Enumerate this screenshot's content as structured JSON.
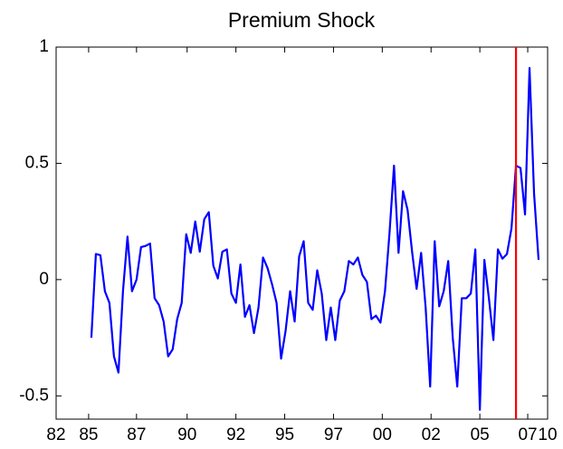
{
  "chart_data": {
    "type": "line",
    "title": "Premium Shock",
    "x": [
      1985,
      1985.25,
      1985.5,
      1985.75,
      1986,
      1986.25,
      1986.5,
      1986.75,
      1987,
      1987.25,
      1987.5,
      1987.75,
      1988,
      1988.25,
      1988.5,
      1988.75,
      1989,
      1989.25,
      1989.5,
      1989.75,
      1990,
      1990.25,
      1990.5,
      1990.75,
      1991,
      1991.25,
      1991.5,
      1991.75,
      1992,
      1992.25,
      1992.5,
      1992.75,
      1993,
      1993.25,
      1993.5,
      1993.75,
      1994,
      1994.25,
      1994.5,
      1994.75,
      1995,
      1995.25,
      1995.5,
      1995.75,
      1996,
      1996.25,
      1996.5,
      1996.75,
      1997,
      1997.25,
      1997.5,
      1997.75,
      1998,
      1998.25,
      1998.5,
      1998.75,
      1999,
      1999.25,
      1999.5,
      1999.75,
      2000,
      2000.25,
      2000.5,
      2000.75,
      2001,
      2001.25,
      2001.5,
      2001.75,
      2002,
      2002.25,
      2002.5,
      2002.75,
      2003,
      2003.25,
      2003.5,
      2003.75,
      2004,
      2004.25,
      2004.5,
      2004.75,
      2005,
      2005.25,
      2005.5,
      2005.75,
      2006,
      2006.25,
      2006.5,
      2006.75,
      2007,
      2007.25,
      2007.5,
      2007.75,
      2008,
      2008.25,
      2008.5,
      2008.75,
      2009,
      2009.25,
      2009.5,
      2009.75
    ],
    "series": [
      {
        "color": "#0000ff",
        "values": [
          -0.25,
          0.11,
          0.105,
          -0.05,
          -0.1,
          -0.33,
          -0.4,
          -0.05,
          0.185,
          -0.05,
          0.0,
          0.14,
          0.145,
          0.155,
          -0.08,
          -0.11,
          -0.18,
          -0.33,
          -0.3,
          -0.17,
          -0.1,
          0.195,
          0.115,
          0.25,
          0.12,
          0.26,
          0.29,
          0.06,
          0.005,
          0.12,
          0.13,
          -0.06,
          -0.1,
          0.065,
          -0.16,
          -0.11,
          -0.23,
          -0.12,
          0.095,
          0.05,
          -0.02,
          -0.1,
          -0.34,
          -0.22,
          -0.05,
          -0.18,
          0.1,
          0.165,
          -0.1,
          -0.13,
          0.04,
          -0.06,
          -0.26,
          -0.12,
          -0.26,
          -0.09,
          -0.05,
          0.08,
          0.065,
          0.095,
          0.02,
          -0.01,
          -0.17,
          -0.155,
          -0.185,
          -0.05,
          0.2,
          0.49,
          0.115,
          0.38,
          0.3,
          0.12,
          -0.04,
          0.115,
          -0.12,
          -0.46,
          0.165,
          -0.115,
          -0.05,
          0.08,
          -0.25,
          -0.46,
          -0.08,
          -0.08,
          -0.06,
          0.13,
          -0.56,
          0.085,
          -0.08,
          -0.26,
          0.13,
          0.09,
          0.11,
          0.22,
          0.49,
          0.48,
          0.28,
          0.91,
          0.37,
          0.085
        ]
      }
    ],
    "vline": {
      "value": 2008.5,
      "color": "#ff0000"
    },
    "xlim": [
      1983.05,
      2010.25
    ],
    "xticks": [
      {
        "value": 1983.05,
        "label": "82"
      },
      {
        "value": 1984.85,
        "label": "85"
      },
      {
        "value": 1987.5,
        "label": "87"
      },
      {
        "value": 1990.3,
        "label": "90"
      },
      {
        "value": 1993.0,
        "label": "92"
      },
      {
        "value": 1995.7,
        "label": "95"
      },
      {
        "value": 1998.4,
        "label": "97"
      },
      {
        "value": 2001.1,
        "label": "00"
      },
      {
        "value": 2003.8,
        "label": "02"
      },
      {
        "value": 2006.5,
        "label": "05"
      },
      {
        "value": 2009.15,
        "label": "07"
      },
      {
        "value": 2010.25,
        "label": "10"
      }
    ],
    "ylim": [
      -0.6,
      1
    ],
    "yticks": [
      -0.5,
      0,
      0.5,
      1
    ]
  }
}
